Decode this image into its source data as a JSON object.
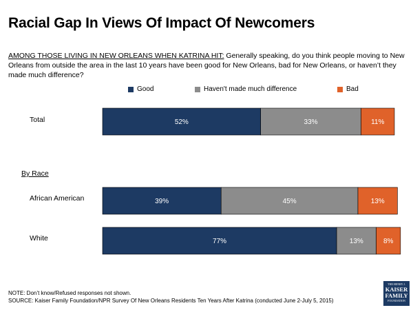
{
  "title": "Racial Gap In Views Of Impact Of Newcomers",
  "question": {
    "lead": "AMONG THOSE LIVING IN NEW ORLEANS WHEN KATRINA HIT:",
    "text": " Generally  speaking, do you think people moving to New Orleans from outside the area in the last 10 years have been good for New Orleans, bad for New Orleans, or haven’t they made much difference?"
  },
  "legend": {
    "good": "Good",
    "no_difference": "Haven't made much difference",
    "bad": "Bad"
  },
  "colors": {
    "good": "#1d3a63",
    "no_difference": "#8c8c8c",
    "bad": "#e0622a"
  },
  "group_label": "By Race",
  "chart_data": {
    "type": "bar",
    "orientation": "horizontal",
    "stacked": true,
    "categories": [
      "Total",
      "African American",
      "White"
    ],
    "series": [
      {
        "name": "Good",
        "values": [
          52,
          39,
          77
        ],
        "labels": [
          "52%",
          "39%",
          "77%"
        ]
      },
      {
        "name": "Haven't made much difference",
        "values": [
          33,
          45,
          13
        ],
        "labels": [
          "33%",
          "45%",
          "13%"
        ]
      },
      {
        "name": "Bad",
        "values": [
          11,
          13,
          8
        ],
        "labels": [
          "11%",
          "13%",
          "8%"
        ]
      }
    ],
    "xlim": [
      0,
      96
    ]
  },
  "footer": {
    "note": "NOTE: Don’t know/Refused responses not shown.",
    "source": "SOURCE: Kaiser Family Foundation/NPR Survey Of New Orleans Residents Ten Years After Katrina (conducted June 2-July 5, 2015)"
  },
  "logo": {
    "line1": "THE HENRY J.",
    "line2": "KAISER",
    "line3": "FAMILY",
    "line4": "FOUNDATION"
  }
}
